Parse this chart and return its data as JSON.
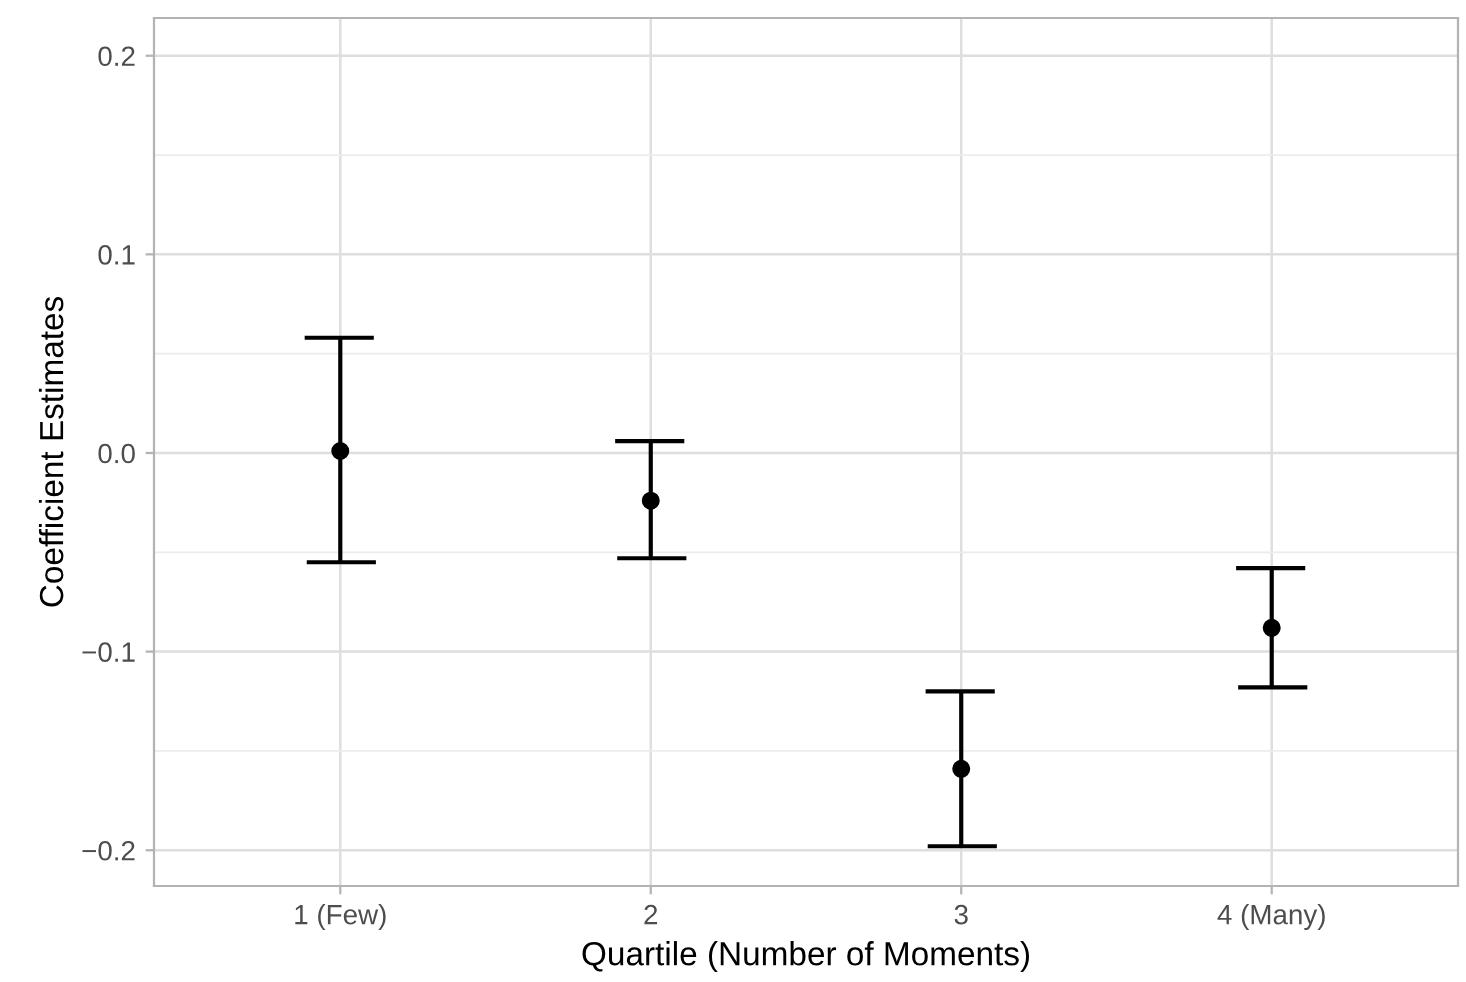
{
  "chart_data": {
    "type": "scatter",
    "xlabel": "Quartile (Number of Moments)",
    "ylabel": "Coefficient Estimates",
    "categories": [
      "1 (Few)",
      "2",
      "3",
      "4 (Many)"
    ],
    "values": [
      0.001,
      -0.024,
      -0.159,
      -0.088
    ],
    "errors": [
      [
        -0.055,
        0.058
      ],
      [
        -0.053,
        0.006
      ],
      [
        -0.198,
        -0.12
      ],
      [
        -0.118,
        -0.058
      ]
    ],
    "color": "#000000",
    "marker": "circle",
    "grid": true,
    "ylim": [
      -0.218,
      0.219
    ],
    "yticks": [
      {
        "value": -0.2,
        "label": "−0.2"
      },
      {
        "value": -0.1,
        "label": "−0.1"
      },
      {
        "value": 0.0,
        "label": "0.0"
      },
      {
        "value": 0.1,
        "label": "0.1"
      },
      {
        "value": 0.2,
        "label": "0.2"
      }
    ]
  }
}
